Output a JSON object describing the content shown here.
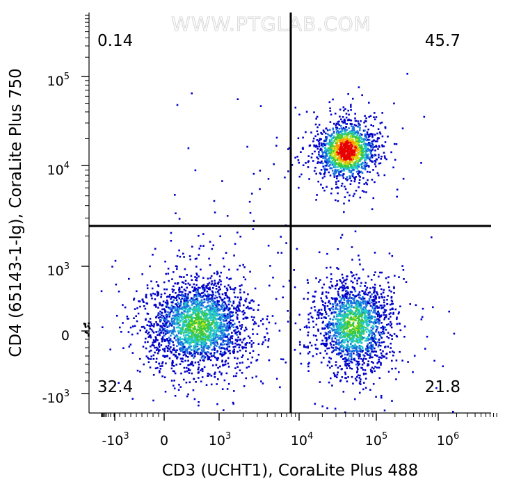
{
  "chart_data": {
    "type": "scatter",
    "subtype": "flow-cytometry-density-dot-plot",
    "watermark": "WWW.PTGLAB.COM",
    "xlabel": "CD3 (UCHT1), CoraLite Plus 488",
    "ylabel": "CD4 (65143-1-Ig), CoraLite Plus 750",
    "x_scale": "biexponential",
    "y_scale": "biexponential",
    "x_ticks": [
      {
        "base": "-10",
        "exp": "3"
      },
      {
        "base": "0",
        "exp": ""
      },
      {
        "base": "10",
        "exp": "3"
      },
      {
        "base": "10",
        "exp": "4"
      },
      {
        "base": "10",
        "exp": "5"
      },
      {
        "base": "10",
        "exp": "6"
      }
    ],
    "y_ticks": [
      {
        "base": "10",
        "exp": "5"
      },
      {
        "base": "10",
        "exp": "4"
      },
      {
        "base": "10",
        "exp": "3"
      },
      {
        "base": "0",
        "exp": ""
      },
      {
        "base": "-10",
        "exp": "3"
      }
    ],
    "quadrant_gate": {
      "x": 8000,
      "y": 2500
    },
    "quadrants": [
      {
        "position": "upper-left",
        "percent": "0.14"
      },
      {
        "position": "upper-right",
        "percent": "45.7"
      },
      {
        "position": "lower-left",
        "percent": "32.4"
      },
      {
        "position": "lower-right",
        "percent": "21.8"
      }
    ],
    "populations": [
      {
        "quadrant": "upper-right",
        "x_center": 40000,
        "y_center": 15000
      },
      {
        "quadrant": "lower-left",
        "x_center": 600,
        "y_center": 100
      },
      {
        "quadrant": "lower-right",
        "x_center": 50000,
        "y_center": 100
      }
    ],
    "density_colors": [
      "#0000c8",
      "#1a6fe0",
      "#23c8c8",
      "#3cc83c",
      "#c8e619",
      "#ff9a00",
      "#e60000"
    ],
    "grid": false,
    "legend": "none"
  }
}
